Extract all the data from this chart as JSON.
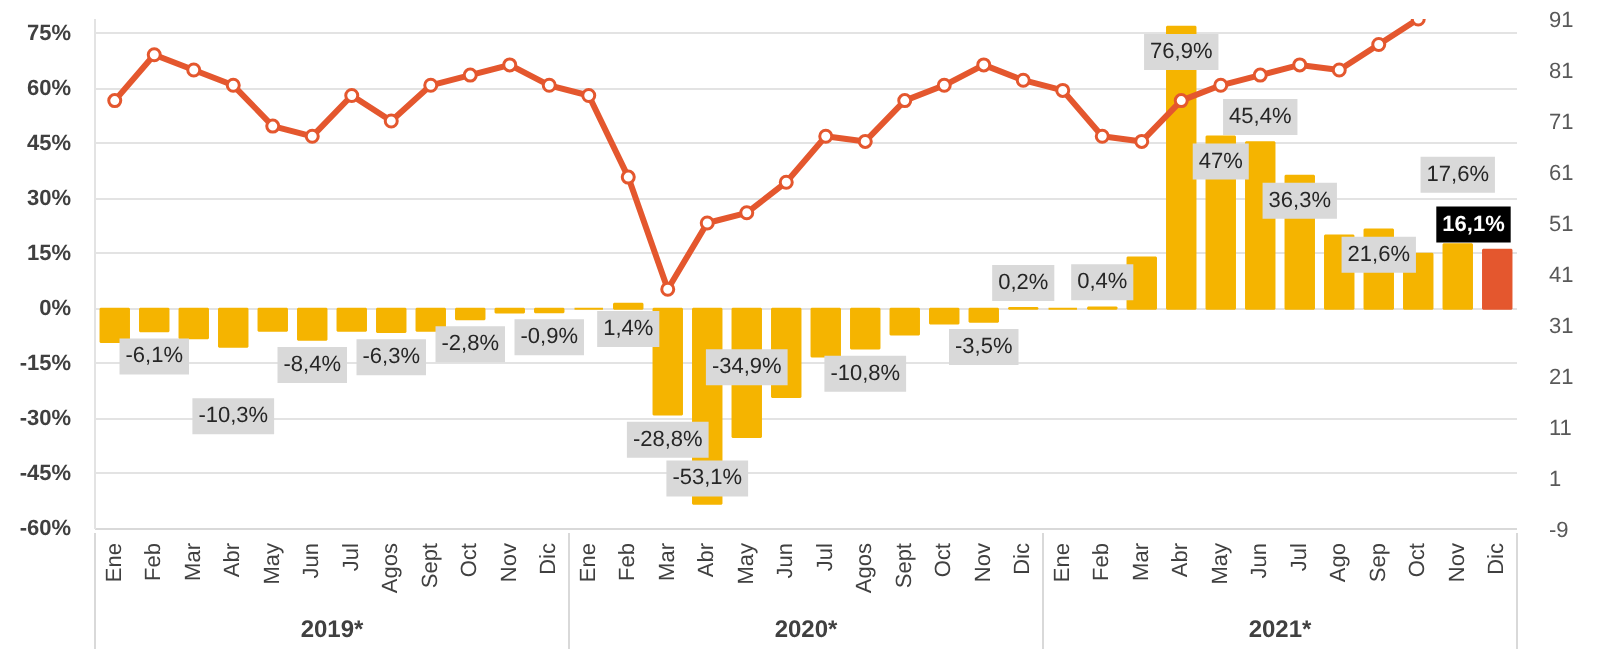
{
  "chart_data": {
    "type": "bar",
    "categories": [
      "Ene",
      "Feb",
      "Mar",
      "Abr",
      "May",
      "Jun",
      "Jul",
      "Agos",
      "Sept",
      "Oct",
      "Nov",
      "Dic",
      "Ene",
      "Feb",
      "Mar",
      "Abr",
      "May",
      "Jun",
      "Jul",
      "Agos",
      "Sept",
      "Oct",
      "Nov",
      "Dic",
      "Ene",
      "Feb",
      "Mar",
      "Abr",
      "May",
      "Jun",
      "Jul",
      "Ago",
      "Sep",
      "Oct",
      "Nov",
      "Dic"
    ],
    "annotations": [
      "2019*",
      "2020*",
      "2021*"
    ],
    "ylim": [
      -60,
      79
    ],
    "yticks": [
      {
        "value": -60,
        "label": "-60%"
      },
      {
        "value": -45,
        "label": "-45%"
      },
      {
        "value": -30,
        "label": "-30%"
      },
      {
        "value": -15,
        "label": "-15%"
      },
      {
        "value": 0,
        "label": "0%"
      },
      {
        "value": 15,
        "label": "15%"
      },
      {
        "value": 30,
        "label": "30%"
      },
      {
        "value": 45,
        "label": "45%"
      },
      {
        "value": 60,
        "label": "60%"
      },
      {
        "value": 75,
        "label": "75%"
      }
    ],
    "y2lim": [
      -9,
      91
    ],
    "y2ticks": [
      -9,
      1,
      11,
      21,
      31,
      41,
      51,
      61,
      71,
      81,
      91
    ],
    "grid": "y",
    "series": [
      {
        "color": "#f5b400",
        "colors": [
          "#f5b400",
          "#f5b400",
          "#f5b400",
          "#f5b400",
          "#f5b400",
          "#f5b400",
          "#f5b400",
          "#f5b400",
          "#f5b400",
          "#f5b400",
          "#f5b400",
          "#f5b400",
          "#f5b400",
          "#f5b400",
          "#f5b400",
          "#f5b400",
          "#f5b400",
          "#f5b400",
          "#f5b400",
          "#f5b400",
          "#f5b400",
          "#f5b400",
          "#f5b400",
          "#f5b400",
          "#f5b400",
          "#f5b400",
          "#f5b400",
          "#f5b400",
          "#f5b400",
          "#f5b400",
          "#f5b400",
          "#f5b400",
          "#f5b400",
          "#f5b400",
          "#f5b400",
          "#e4572e"
        ],
        "values": [
          -9,
          -6.1,
          -8,
          -10.3,
          -6,
          -8.4,
          -6,
          -6.3,
          -6,
          -2.8,
          -1,
          -0.9,
          0,
          1.4,
          -28.8,
          -53.1,
          -34.9,
          -24,
          -13,
          -10.8,
          -7,
          -4,
          -3.5,
          0.2,
          0,
          0.4,
          14,
          76.9,
          47,
          45.4,
          36.3,
          20,
          21.6,
          15,
          17.6,
          16.1
        ],
        "value_labels": [
          null,
          "-6,1%",
          null,
          "-10,3%",
          null,
          "-8,4%",
          null,
          "-6,3%",
          null,
          "-2,8%",
          null,
          "-0,9%",
          null,
          "1,4%",
          "-28,8%",
          "-53,1%",
          "-34,9%",
          null,
          null,
          "-10,8%",
          null,
          null,
          "-3,5%",
          "0,2%",
          null,
          "0,4%",
          null,
          "76,9%",
          "47%",
          "45,4%",
          "36,3%",
          null,
          "21,6%",
          null,
          "17,6%",
          "16,1%"
        ]
      },
      {
        "type": "line",
        "axis": "y2",
        "color": "#e4572e",
        "marker": "circle",
        "line_style": "solid",
        "values": [
          75,
          84,
          81,
          78,
          70,
          68,
          76,
          71,
          78,
          80,
          82,
          78,
          76,
          60,
          38,
          51,
          53,
          59,
          68,
          67,
          75,
          78,
          82,
          79,
          77,
          68,
          67,
          75,
          78,
          80,
          82,
          81,
          86,
          91,
          null,
          null
        ]
      }
    ]
  }
}
